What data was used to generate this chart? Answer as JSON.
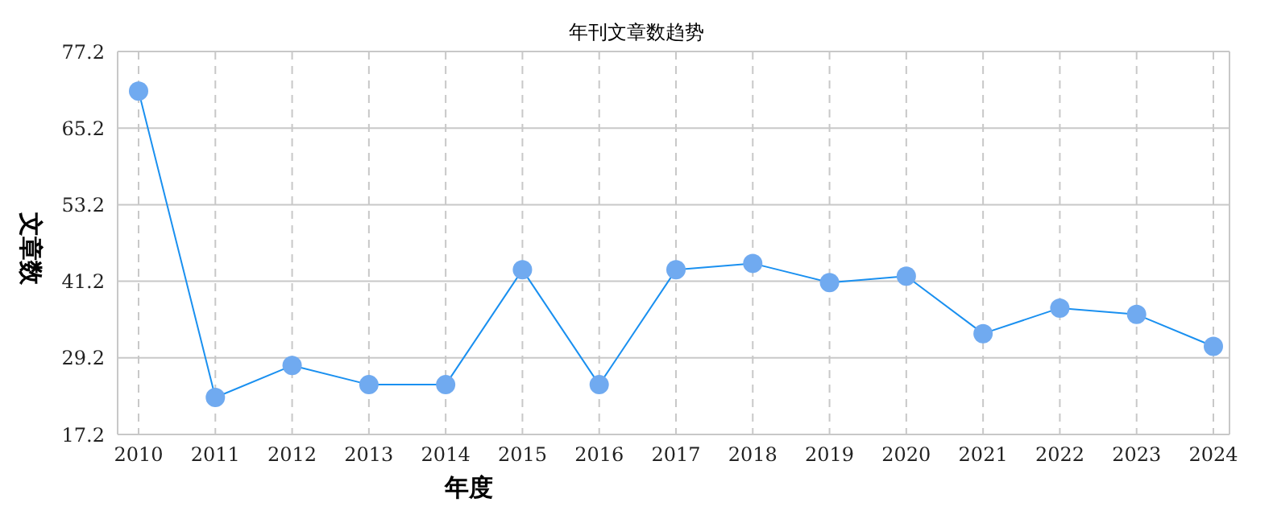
{
  "chart_data": {
    "type": "line",
    "title": "年刊文章数趋势",
    "xlabel": "年度",
    "ylabel": "文章数",
    "categories": [
      "2010",
      "2011",
      "2012",
      "2013",
      "2014",
      "2015",
      "2016",
      "2017",
      "2018",
      "2019",
      "2020",
      "2021",
      "2022",
      "2023",
      "2024"
    ],
    "series": [
      {
        "color": "#1a90f0",
        "values": [
          71,
          23,
          28,
          25,
          25,
          43,
          25,
          43,
          44,
          41,
          42,
          33,
          37,
          36,
          31
        ]
      }
    ],
    "ylim": [
      17.2,
      77.2
    ],
    "yticks": [
      17.2,
      29.2,
      41.2,
      53.2,
      65.2,
      77.2
    ],
    "grid": true,
    "marker": "circle"
  }
}
